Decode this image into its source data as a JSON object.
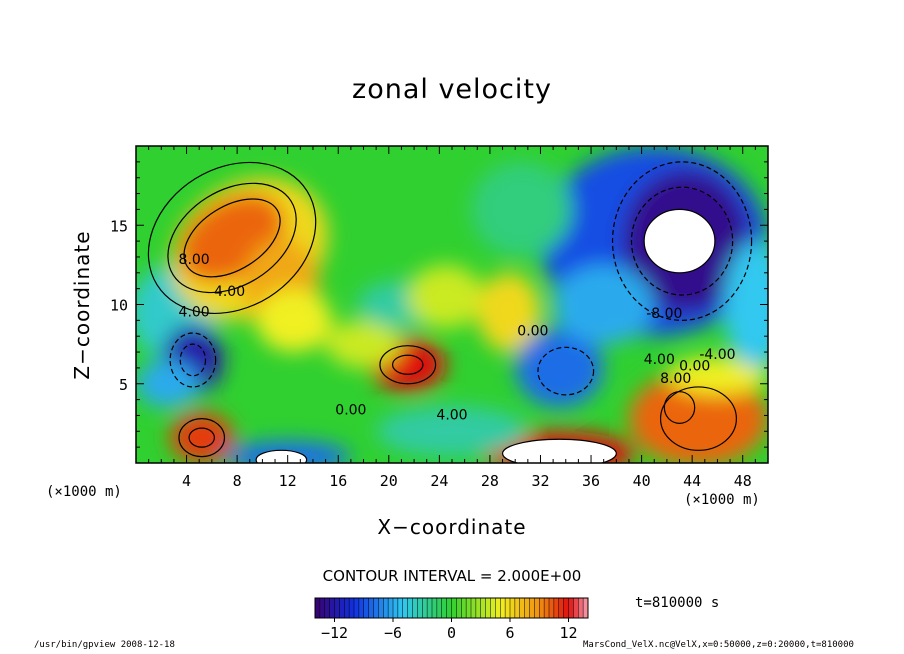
{
  "header": {
    "title": "zonal velocity"
  },
  "axes": {
    "xlabel": "X−coordinate",
    "ylabel": "Z−coordinate",
    "x_unit_left": "(×1000 m)",
    "x_unit_right": "(×1000 m)"
  },
  "annotations": {
    "contour_interval": "CONTOUR INTERVAL = 2.000E+00",
    "time": "t=810000 s",
    "footer_left": "/usr/bin/gpview  2008-12-18",
    "footer_right": "MarsCond_VelX.nc@VelX,x=0:50000,z=0:20000,t=810000"
  },
  "colors": {
    "min": "#3a0070",
    "blue": "#1030e0",
    "cyan": "#30c8f0",
    "green": "#30d030",
    "yellow": "#f0f020",
    "orange": "#f09010",
    "red": "#e01010",
    "max": "#f8a0b0",
    "undefined": "#ffffff"
  },
  "chart_data": {
    "type": "heatmap",
    "title": "zonal velocity",
    "xlabel": "X−coordinate",
    "ylabel": "Z−coordinate",
    "x_unit": "(×1000 m)",
    "xlim": [
      0,
      50
    ],
    "ylim": [
      0,
      20
    ],
    "x_ticks": [
      4,
      8,
      12,
      16,
      20,
      24,
      28,
      32,
      36,
      40,
      44,
      48
    ],
    "y_ticks": [
      5,
      10,
      15
    ],
    "contour_interval": 2.0,
    "colorbar": {
      "ticks": [
        -12,
        -6,
        0,
        6,
        12
      ],
      "tick_labels": [
        "−12",
        "−6",
        "0",
        "6",
        "12"
      ],
      "range": [
        -14,
        14
      ]
    },
    "contour_labels": [
      {
        "text": "8.00",
        "x": 4.6,
        "z": 12.8
      },
      {
        "text": "4.00",
        "x": 7.4,
        "z": 10.8
      },
      {
        "text": "4.00",
        "x": 4.6,
        "z": 9.5
      },
      {
        "text": "0.00",
        "x": 17.0,
        "z": 3.3
      },
      {
        "text": "4.00",
        "x": 25.0,
        "z": 3.0
      },
      {
        "text": "0.00",
        "x": 31.4,
        "z": 8.3
      },
      {
        "text": "-8.00",
        "x": 41.8,
        "z": 9.4
      },
      {
        "text": "-4.00",
        "x": 46.0,
        "z": 6.8
      },
      {
        "text": "4.00",
        "x": 41.4,
        "z": 6.5
      },
      {
        "text": "0.00",
        "x": 44.2,
        "z": 6.1
      },
      {
        "text": "8.00",
        "x": 42.7,
        "z": 5.3
      }
    ],
    "features": [
      {
        "label": "positive jet",
        "x": 7.5,
        "z": 14.0,
        "value": 10
      },
      {
        "label": "positive core",
        "x": 21.5,
        "z": 6.0,
        "value": 12
      },
      {
        "label": "positive core",
        "x": 5.0,
        "z": 1.5,
        "value": 13
      },
      {
        "label": "positive region",
        "x": 44.0,
        "z": 3.0,
        "value": 10
      },
      {
        "label": "negative core",
        "x": 4.5,
        "z": 6.5,
        "value": -12
      },
      {
        "label": "negative vortex",
        "x": 43.0,
        "z": 14.0,
        "value": -13
      },
      {
        "label": "negative",
        "x": 34.0,
        "z": 5.5,
        "value": -8
      }
    ]
  }
}
